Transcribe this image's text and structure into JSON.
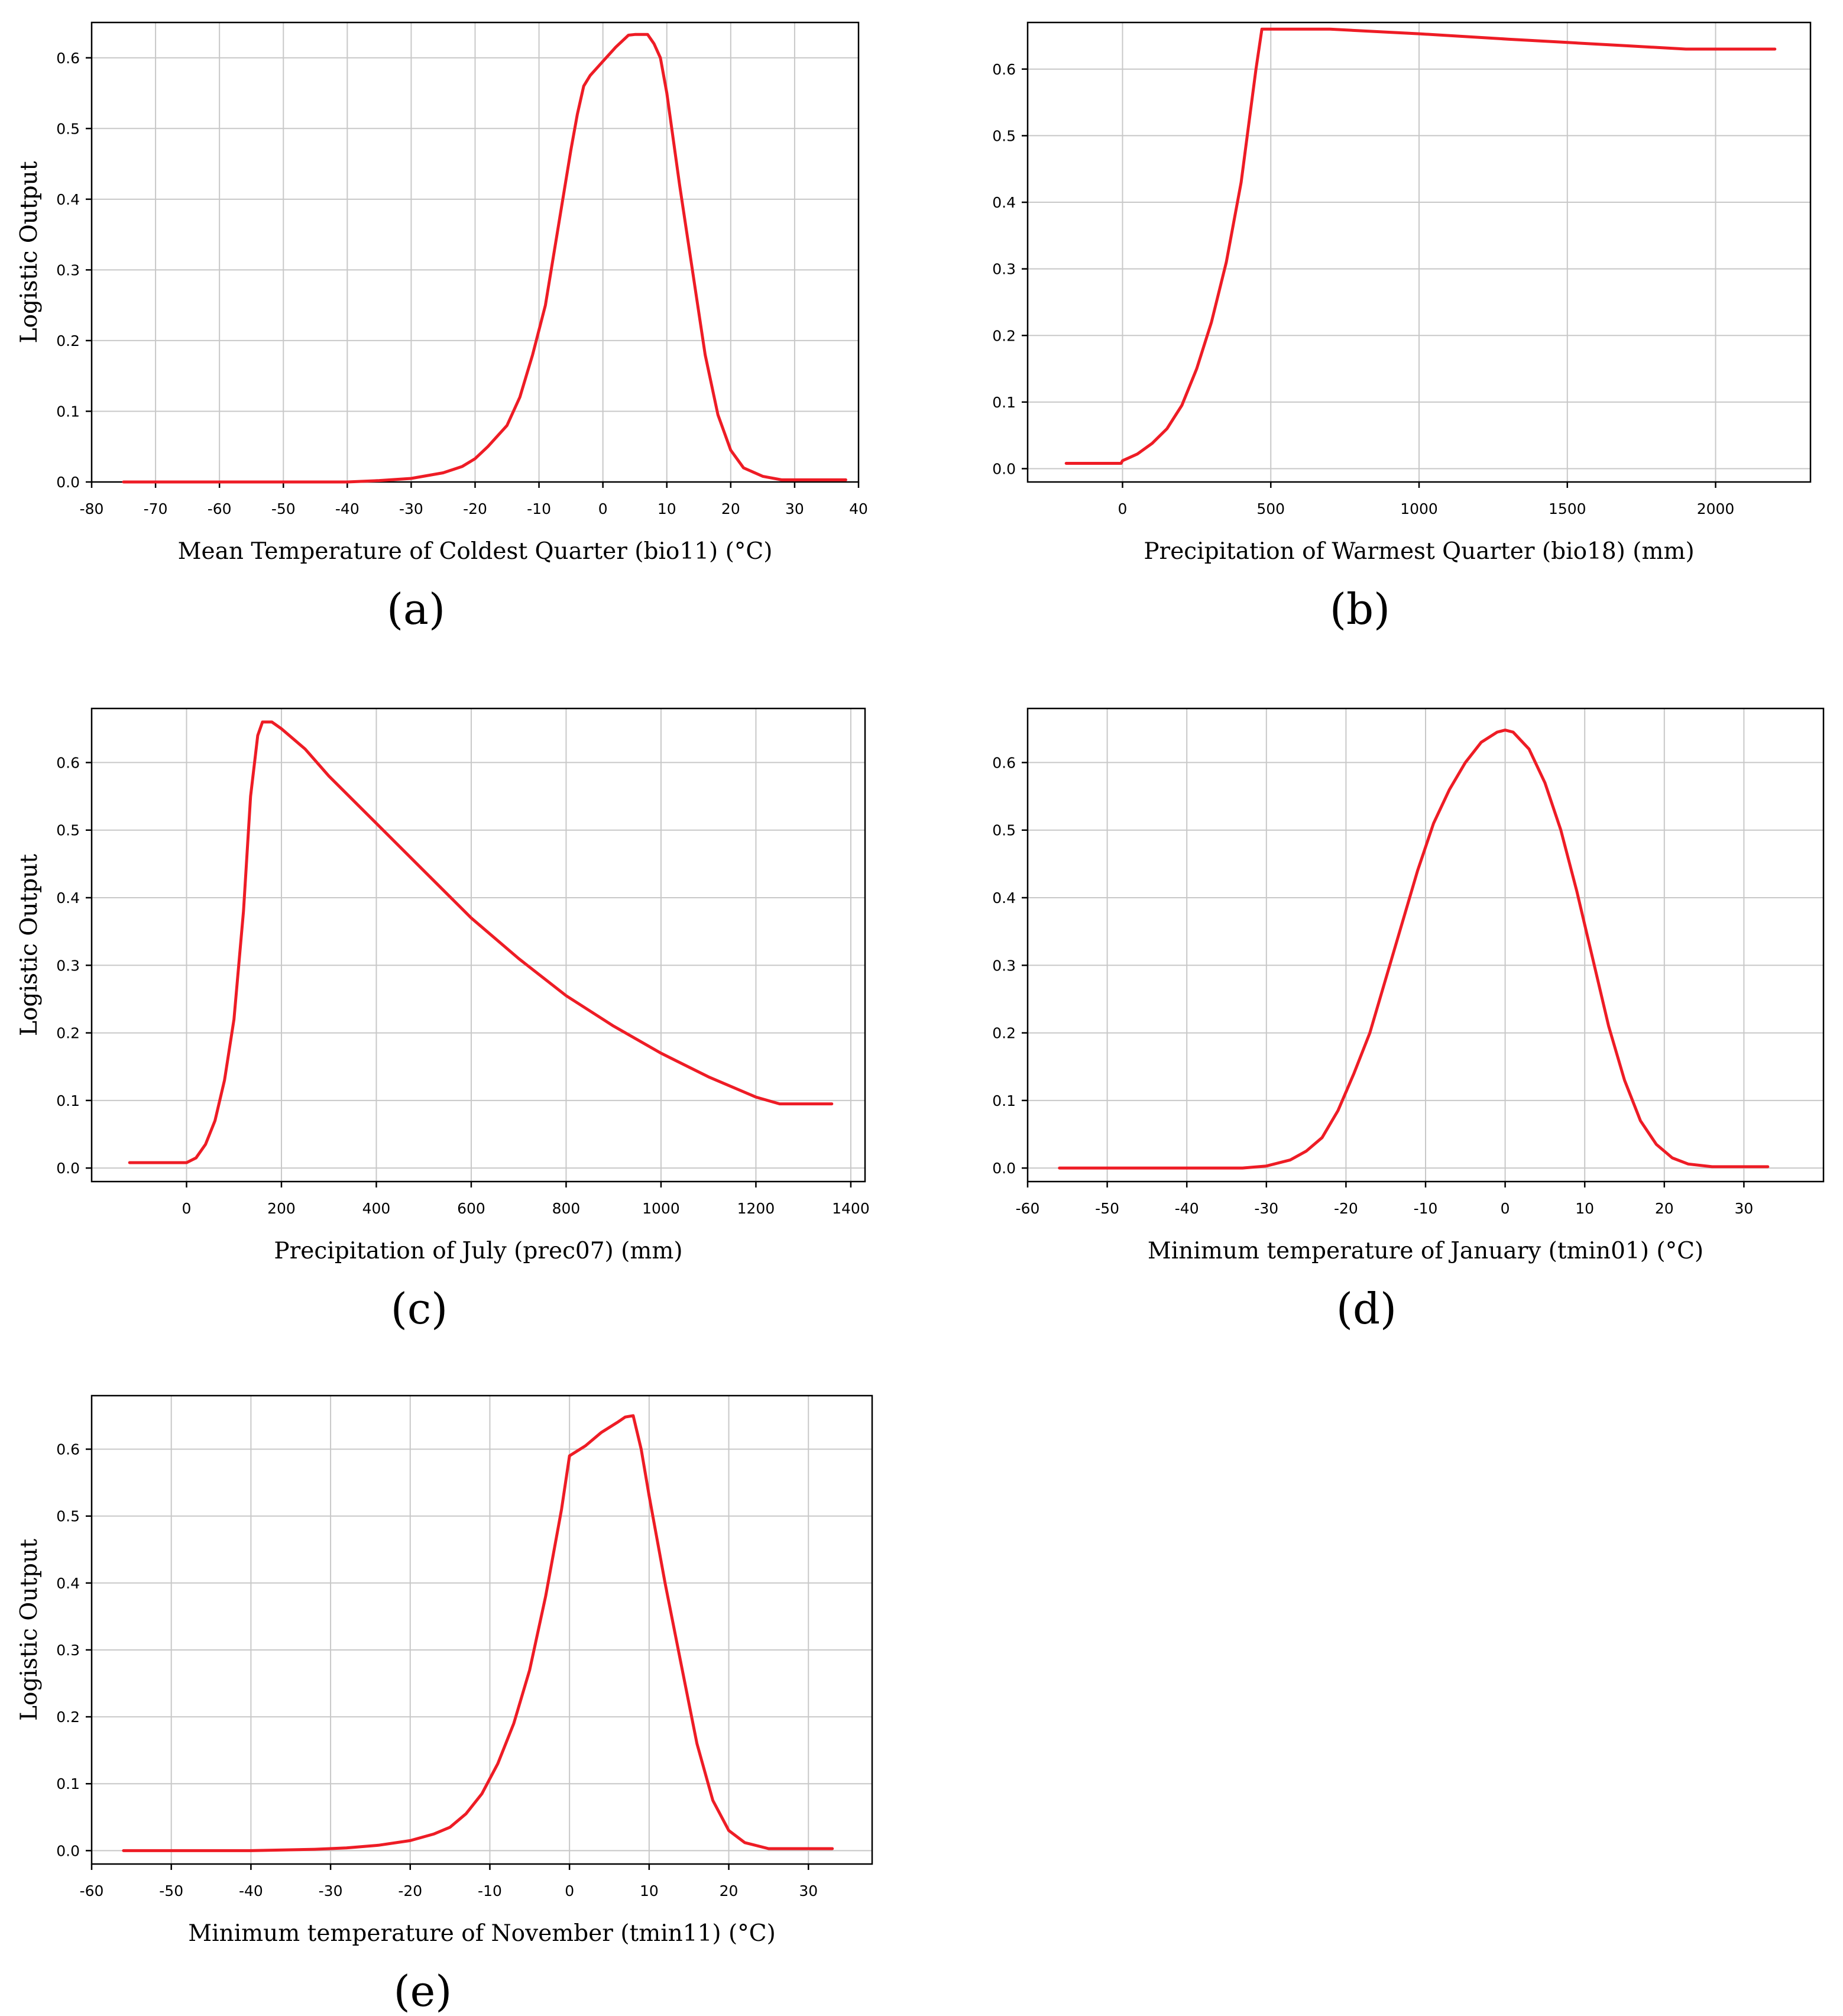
{
  "colors": {
    "curve": "#ee1c25",
    "grid": "#c8c8c8",
    "frame": "#000000"
  },
  "chart_data": [
    {
      "panel": "(a)",
      "type": "line",
      "xlabel": "Mean Temperature of Coldest Quarter (bio11) (°C)",
      "ylabel": "Logistic Output",
      "xlim": [
        -80,
        40
      ],
      "ylim": [
        0,
        0.65
      ],
      "xticks": [
        -80,
        -70,
        -60,
        -50,
        -40,
        -30,
        -20,
        -10,
        0,
        10,
        20,
        30,
        40
      ],
      "yticks": [
        0.0,
        0.1,
        0.2,
        0.3,
        0.4,
        0.5,
        0.6
      ],
      "grid": true,
      "series": [
        {
          "x": [
            -75,
            -60,
            -40,
            -35,
            -30,
            -25,
            -22,
            -20,
            -18,
            -15,
            -13,
            -11,
            -9,
            -7,
            -5,
            -4,
            -3,
            -2,
            0,
            2,
            4,
            5,
            7,
            8,
            9,
            10,
            12,
            14,
            16,
            18,
            20,
            22,
            25,
            28,
            38
          ],
          "y": [
            0.0,
            0.0,
            0.0,
            0.002,
            0.005,
            0.013,
            0.022,
            0.033,
            0.05,
            0.08,
            0.12,
            0.18,
            0.25,
            0.36,
            0.47,
            0.52,
            0.56,
            0.575,
            0.595,
            0.615,
            0.632,
            0.633,
            0.633,
            0.62,
            0.6,
            0.55,
            0.42,
            0.3,
            0.18,
            0.095,
            0.045,
            0.02,
            0.008,
            0.003,
            0.003
          ]
        }
      ]
    },
    {
      "panel": "(b)",
      "type": "line",
      "xlabel": "Precipitation of Warmest Quarter (bio18) (mm)",
      "ylabel": "Logistic Output",
      "xlim": [
        -320,
        2320
      ],
      "ylim": [
        -0.02,
        0.67
      ],
      "xticks": [
        0,
        500,
        1000,
        1500,
        2000
      ],
      "yticks": [
        0.0,
        0.1,
        0.2,
        0.3,
        0.4,
        0.5,
        0.6
      ],
      "grid": true,
      "series": [
        {
          "x": [
            -190,
            -5,
            0,
            50,
            100,
            150,
            200,
            250,
            300,
            350,
            400,
            450,
            470,
            600,
            700,
            1000,
            1300,
            1500,
            1700,
            1900,
            2200
          ],
          "y": [
            0.008,
            0.008,
            0.012,
            0.022,
            0.038,
            0.06,
            0.095,
            0.15,
            0.22,
            0.31,
            0.43,
            0.6,
            0.66,
            0.66,
            0.66,
            0.653,
            0.645,
            0.64,
            0.635,
            0.63,
            0.63
          ]
        }
      ]
    },
    {
      "panel": "(c)",
      "type": "line",
      "xlabel": "Precipitation of July (prec07) (mm)",
      "ylabel": "Logistic Output",
      "xlim": [
        -200,
        1430
      ],
      "ylim": [
        -0.02,
        0.68
      ],
      "xticks": [
        0,
        200,
        400,
        600,
        800,
        1000,
        1200,
        1400
      ],
      "yticks": [
        0.0,
        0.1,
        0.2,
        0.3,
        0.4,
        0.5,
        0.6
      ],
      "grid": true,
      "series": [
        {
          "x": [
            -120,
            0,
            20,
            40,
            60,
            80,
            100,
            120,
            135,
            150,
            160,
            180,
            200,
            250,
            300,
            400,
            500,
            600,
            700,
            800,
            900,
            1000,
            1100,
            1200,
            1250,
            1360
          ],
          "y": [
            0.008,
            0.008,
            0.015,
            0.035,
            0.07,
            0.13,
            0.22,
            0.38,
            0.55,
            0.64,
            0.66,
            0.66,
            0.65,
            0.62,
            0.58,
            0.51,
            0.44,
            0.37,
            0.31,
            0.255,
            0.21,
            0.17,
            0.135,
            0.105,
            0.095,
            0.095
          ]
        }
      ]
    },
    {
      "panel": "(d)",
      "type": "line",
      "xlabel": "Minimum temperature of January (tmin01) (°C)",
      "ylabel": "Logistic Output",
      "xlim": [
        -60,
        40
      ],
      "ylim": [
        -0.02,
        0.68
      ],
      "xticks": [
        -60,
        -50,
        -40,
        -30,
        -20,
        -10,
        0,
        10,
        20,
        30
      ],
      "yticks": [
        0.0,
        0.1,
        0.2,
        0.3,
        0.4,
        0.5,
        0.6
      ],
      "grid": true,
      "series": [
        {
          "x": [
            -56,
            -40,
            -33,
            -30,
            -27,
            -25,
            -23,
            -21,
            -19,
            -17,
            -15,
            -13,
            -11,
            -9,
            -7,
            -5,
            -3,
            -1,
            0,
            1,
            3,
            5,
            7,
            9,
            11,
            13,
            15,
            17,
            19,
            21,
            23,
            26,
            33
          ],
          "y": [
            0.0,
            0.0,
            0.0,
            0.003,
            0.012,
            0.025,
            0.045,
            0.085,
            0.14,
            0.2,
            0.28,
            0.36,
            0.44,
            0.51,
            0.56,
            0.6,
            0.63,
            0.645,
            0.648,
            0.645,
            0.62,
            0.57,
            0.5,
            0.41,
            0.31,
            0.21,
            0.13,
            0.07,
            0.035,
            0.015,
            0.006,
            0.002,
            0.002
          ]
        }
      ]
    },
    {
      "panel": "(e)",
      "type": "line",
      "xlabel": "Minimum temperature of November (tmin11) (°C)",
      "ylabel": "Logistic Output",
      "xlim": [
        -60,
        38
      ],
      "ylim": [
        -0.02,
        0.68
      ],
      "xticks": [
        -60,
        -50,
        -40,
        -30,
        -20,
        -10,
        0,
        10,
        20,
        30
      ],
      "yticks": [
        0.0,
        0.1,
        0.2,
        0.3,
        0.4,
        0.5,
        0.6
      ],
      "grid": true,
      "series": [
        {
          "x": [
            -56,
            -40,
            -32,
            -28,
            -24,
            -20,
            -17,
            -15,
            -13,
            -11,
            -9,
            -7,
            -5,
            -3,
            -1,
            0,
            2,
            4,
            6,
            7,
            8,
            9,
            10,
            12,
            14,
            16,
            18,
            20,
            22,
            25,
            33
          ],
          "y": [
            0.0,
            0.0,
            0.002,
            0.004,
            0.008,
            0.015,
            0.025,
            0.035,
            0.055,
            0.085,
            0.13,
            0.19,
            0.27,
            0.38,
            0.51,
            0.59,
            0.605,
            0.625,
            0.64,
            0.648,
            0.65,
            0.6,
            0.53,
            0.4,
            0.28,
            0.16,
            0.075,
            0.03,
            0.012,
            0.003,
            0.003
          ]
        }
      ]
    }
  ]
}
